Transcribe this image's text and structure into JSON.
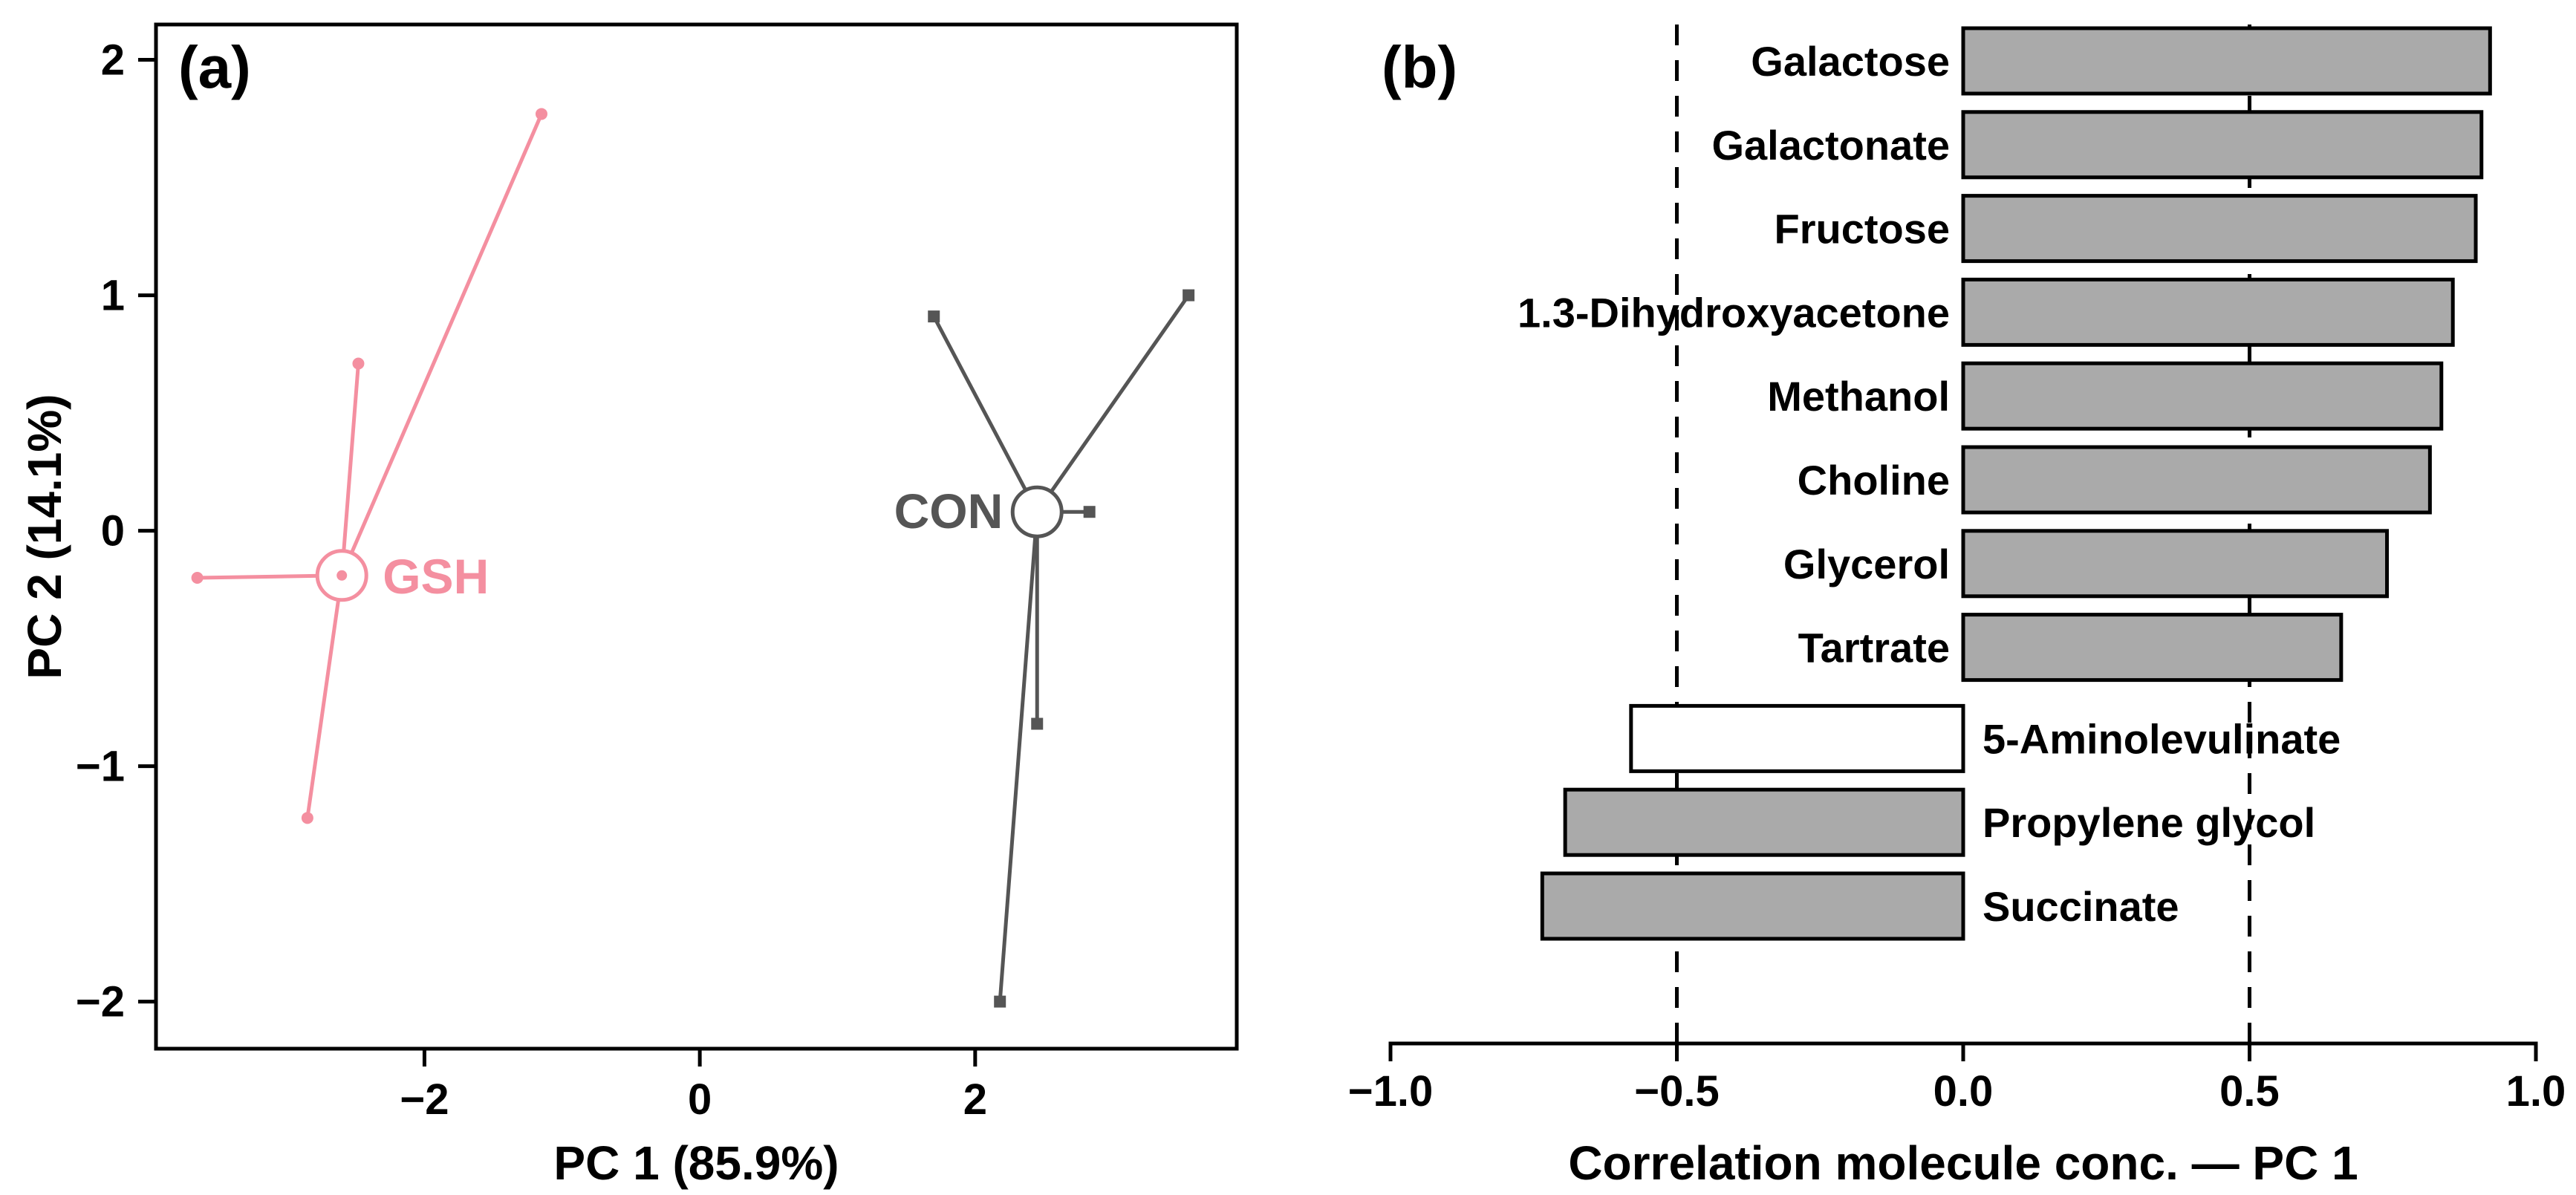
{
  "colors": {
    "gsh": "#f48fa0",
    "con": "#555555",
    "bar_fill": "#aaaaaa",
    "bar_highlight_fill": "#ffffff",
    "axis": "#000000"
  },
  "chart_data": [
    {
      "type": "scatter",
      "panel_label": "(a)",
      "xlabel": "PC 1 (85.9%)",
      "ylabel": "PC 2 (14.1%)",
      "xlim": [
        -3.95,
        3.9
      ],
      "ylim": [
        -2.2,
        2.15
      ],
      "xticks": [
        -2,
        0,
        2
      ],
      "xtick_labels": [
        "−2",
        "0",
        "2"
      ],
      "yticks": [
        -2,
        -1,
        0,
        1,
        2
      ],
      "ytick_labels": [
        "−2",
        "−1",
        "0",
        "1",
        "2"
      ],
      "series": [
        {
          "name": "GSH",
          "color_key": "gsh",
          "marker": "circle",
          "centroid": {
            "x": -2.6,
            "y": -0.19
          },
          "points": [
            {
              "x": -1.15,
              "y": 1.77
            },
            {
              "x": -2.48,
              "y": 0.71
            },
            {
              "x": -3.65,
              "y": -0.2
            },
            {
              "x": -2.85,
              "y": -1.22
            }
          ]
        },
        {
          "name": "CON",
          "color_key": "con",
          "marker": "square",
          "centroid": {
            "x": 2.45,
            "y": 0.08
          },
          "points": [
            {
              "x": 1.7,
              "y": 0.91
            },
            {
              "x": 3.55,
              "y": 1.0
            },
            {
              "x": 2.83,
              "y": 0.08
            },
            {
              "x": 2.45,
              "y": -0.82
            },
            {
              "x": 2.18,
              "y": -2.0
            }
          ]
        }
      ]
    },
    {
      "type": "bar",
      "orientation": "horizontal",
      "panel_label": "(b)",
      "xlabel": "Correlation molecule conc. — PC 1",
      "xlim": [
        -1.0,
        1.0
      ],
      "xticks": [
        -1.0,
        -0.5,
        0.0,
        0.5,
        1.0
      ],
      "xtick_labels": [
        "−1.0",
        "−0.5",
        "0.0",
        "0.5",
        "1.0"
      ],
      "reference_lines": [
        -0.5,
        0.5
      ],
      "categories": [
        "Galactose",
        "Galactonate",
        "Fructose",
        "1.3-Dihydroxyacetone",
        "Methanol",
        "Choline",
        "Glycerol",
        "Tartrate",
        "5-Aminolevulinate",
        "Propylene glycol",
        "Succinate"
      ],
      "values": [
        0.92,
        0.905,
        0.895,
        0.855,
        0.835,
        0.815,
        0.74,
        0.66,
        -0.58,
        -0.695,
        -0.735
      ],
      "highlighted": [
        "5-Aminolevulinate"
      ]
    }
  ]
}
